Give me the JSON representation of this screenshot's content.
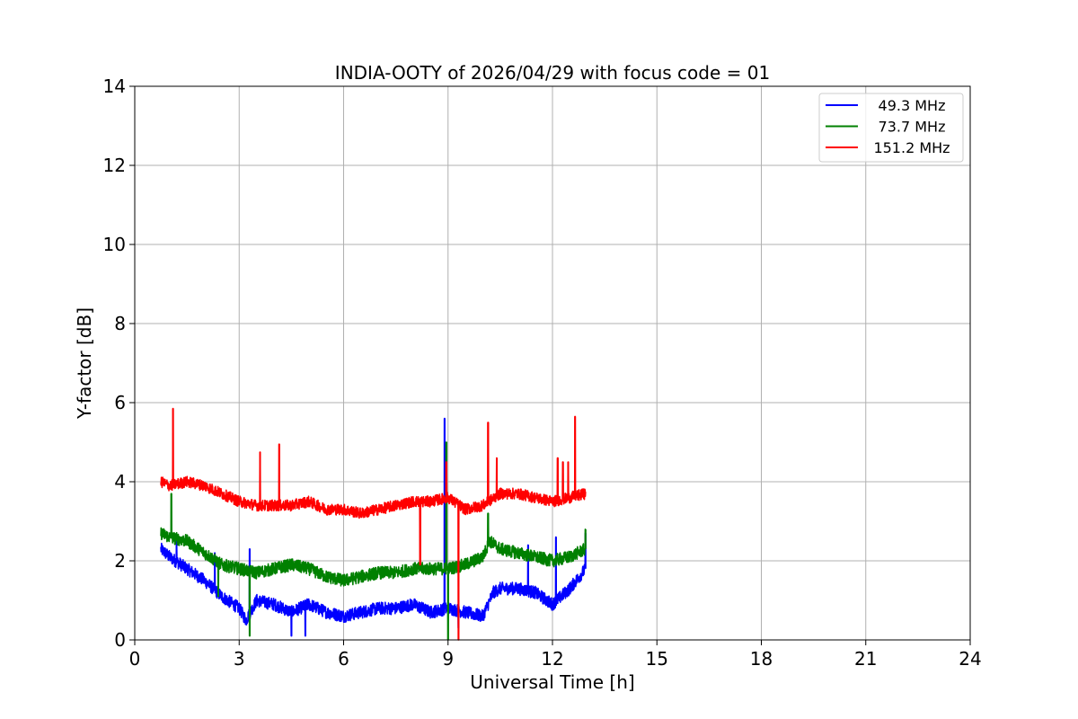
{
  "chart_data": {
    "type": "line",
    "title": "INDIA-OOTY of 2026/04/29 with focus code = 01",
    "xlabel": "Universal Time [h]",
    "ylabel": "Y-factor [dB]",
    "xlim": [
      0,
      24
    ],
    "ylim": [
      0,
      14
    ],
    "xticks": [
      0,
      3,
      6,
      9,
      12,
      15,
      18,
      21,
      24
    ],
    "yticks": [
      0,
      2,
      4,
      6,
      8,
      10,
      12,
      14
    ],
    "grid": true,
    "legend_position": "top-right",
    "series": [
      {
        "name": " 49.3 MHz",
        "color": "#0000ff",
        "x": [
          0.75,
          1.0,
          1.5,
          2.0,
          2.5,
          3.0,
          3.2,
          3.5,
          4.0,
          4.5,
          5.0,
          5.5,
          6.0,
          6.5,
          7.0,
          7.5,
          8.0,
          8.5,
          9.0,
          9.5,
          10.0,
          10.3,
          10.5,
          11.0,
          11.5,
          12.0,
          12.5,
          12.95
        ],
        "y": [
          2.3,
          2.1,
          1.8,
          1.5,
          1.1,
          0.8,
          0.5,
          1.0,
          0.9,
          0.7,
          0.9,
          0.7,
          0.6,
          0.7,
          0.8,
          0.8,
          0.9,
          0.7,
          0.8,
          0.7,
          0.6,
          1.2,
          1.3,
          1.3,
          1.2,
          0.9,
          1.3,
          1.8
        ],
        "spikes": [
          {
            "x": 1.2,
            "y": 2.5
          },
          {
            "x": 2.3,
            "y": 2.2
          },
          {
            "x": 3.3,
            "y": 2.3
          },
          {
            "x": 4.5,
            "y": 0.1
          },
          {
            "x": 4.9,
            "y": 0.1
          },
          {
            "x": 8.9,
            "y": 5.6
          },
          {
            "x": 9.3,
            "y": 0.3
          },
          {
            "x": 11.3,
            "y": 2.4
          },
          {
            "x": 12.1,
            "y": 2.6
          },
          {
            "x": 12.95,
            "y": 2.7
          }
        ]
      },
      {
        "name": " 73.7 MHz",
        "color": "#008000",
        "x": [
          0.75,
          1.0,
          1.5,
          2.0,
          2.5,
          3.0,
          3.5,
          4.0,
          4.5,
          5.0,
          5.5,
          6.0,
          6.5,
          7.0,
          7.5,
          8.0,
          8.5,
          9.0,
          9.5,
          10.0,
          10.2,
          10.5,
          11.0,
          11.5,
          12.0,
          12.5,
          12.95
        ],
        "y": [
          2.7,
          2.6,
          2.5,
          2.2,
          1.9,
          1.8,
          1.7,
          1.8,
          1.9,
          1.8,
          1.6,
          1.5,
          1.6,
          1.7,
          1.7,
          1.8,
          1.8,
          1.8,
          1.9,
          2.1,
          2.5,
          2.3,
          2.2,
          2.1,
          2.0,
          2.1,
          2.3
        ],
        "spikes": [
          {
            "x": 1.05,
            "y": 3.7
          },
          {
            "x": 2.4,
            "y": 1.1
          },
          {
            "x": 3.3,
            "y": 0.1
          },
          {
            "x": 8.95,
            "y": 5.0
          },
          {
            "x": 9.0,
            "y": 0.0
          },
          {
            "x": 10.15,
            "y": 3.2
          },
          {
            "x": 12.95,
            "y": 2.8
          }
        ]
      },
      {
        "name": "151.2 MHz",
        "color": "#ff0000",
        "x": [
          0.75,
          1.0,
          1.5,
          2.0,
          2.5,
          3.0,
          3.5,
          4.0,
          4.5,
          5.0,
          5.5,
          6.0,
          6.5,
          7.0,
          7.5,
          8.0,
          8.5,
          9.0,
          9.5,
          10.0,
          10.5,
          11.0,
          11.5,
          12.0,
          12.5,
          12.95
        ],
        "y": [
          4.0,
          3.9,
          4.0,
          3.9,
          3.7,
          3.5,
          3.4,
          3.4,
          3.4,
          3.5,
          3.3,
          3.3,
          3.2,
          3.3,
          3.4,
          3.5,
          3.5,
          3.6,
          3.3,
          3.4,
          3.7,
          3.7,
          3.6,
          3.5,
          3.6,
          3.7
        ],
        "spikes": [
          {
            "x": 1.1,
            "y": 5.85
          },
          {
            "x": 3.6,
            "y": 4.75
          },
          {
            "x": 4.15,
            "y": 4.95
          },
          {
            "x": 8.2,
            "y": 1.9
          },
          {
            "x": 8.95,
            "y": 4.5
          },
          {
            "x": 9.3,
            "y": 0.0
          },
          {
            "x": 10.15,
            "y": 5.5
          },
          {
            "x": 10.4,
            "y": 4.6
          },
          {
            "x": 12.15,
            "y": 4.6
          },
          {
            "x": 12.3,
            "y": 4.5
          },
          {
            "x": 12.45,
            "y": 4.5
          },
          {
            "x": 12.65,
            "y": 5.65
          }
        ]
      }
    ]
  }
}
